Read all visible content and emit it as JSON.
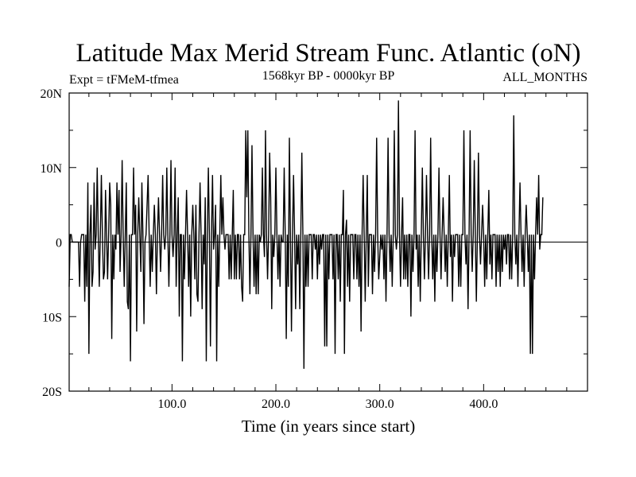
{
  "chart_data": {
    "type": "line",
    "title": "Latitude Max Merid Stream Func. Atlantic (oN)",
    "subtitle_left": "Expt = tFMeM-tfmea",
    "subtitle_center": "1568kyr BP - 0000kyr BP",
    "subtitle_right": "ALL_MONTHS",
    "xlabel": "Time (in years since start)",
    "ylabel": "",
    "xlim": [
      1,
      500
    ],
    "ylim": [
      -20,
      20
    ],
    "x_ticks": [
      {
        "value": 100,
        "label": "100.0"
      },
      {
        "value": 200,
        "label": "200.0"
      },
      {
        "value": 300,
        "label": "300.0"
      },
      {
        "value": 400,
        "label": "400.0"
      }
    ],
    "y_ticks": [
      {
        "value": 20,
        "label": "20N"
      },
      {
        "value": 10,
        "label": "10N"
      },
      {
        "value": 0,
        "label": "0"
      },
      {
        "value": -10,
        "label": "10S"
      },
      {
        "value": -20,
        "label": "20S"
      }
    ],
    "zero_line": true,
    "series": [
      {
        "name": "Latitude of max Atlantic meridional streamfunction",
        "color": "#000000",
        "x_start": 1,
        "x_step": 1,
        "values": [
          -6,
          1,
          1,
          0,
          0,
          0,
          0,
          0,
          0,
          0,
          -6,
          0,
          1,
          1,
          1,
          -8,
          1,
          -6,
          8,
          -15,
          1,
          5,
          -6,
          -4,
          8,
          -1,
          1,
          10,
          1,
          -6,
          1,
          9,
          1,
          -5,
          -4,
          7,
          1,
          -5,
          1,
          8,
          5,
          -13,
          1,
          -5,
          1,
          -1,
          8,
          1,
          7,
          -4,
          1,
          11,
          1,
          -6,
          1,
          8,
          -8,
          -9,
          1,
          -16,
          1,
          1,
          10,
          1,
          5,
          -12,
          1,
          6,
          1,
          -4,
          8,
          1,
          -11,
          0,
          1,
          5,
          9,
          1,
          -6,
          1,
          -4,
          1,
          5,
          1,
          -7,
          1,
          6,
          1,
          -4,
          1,
          9,
          1,
          -1,
          1,
          10,
          1,
          -6,
          1,
          11,
          1,
          -2,
          1,
          10,
          -6,
          1,
          6,
          -10,
          1,
          1,
          -16,
          1,
          -5,
          1,
          7,
          1,
          -6,
          1,
          -10,
          1,
          5,
          1,
          -5,
          5,
          -7,
          -8,
          1,
          8,
          1,
          -9,
          1,
          -3,
          6,
          -16,
          1,
          10,
          1,
          -14,
          1,
          9,
          -1,
          1,
          5,
          -16,
          1,
          -6,
          1,
          9,
          1,
          6,
          1,
          -1,
          1,
          1,
          1,
          -5,
          1,
          -5,
          1,
          7,
          -5,
          1,
          -5,
          1,
          1,
          -5,
          1,
          -6,
          -8,
          1,
          1,
          15,
          6,
          15,
          1,
          -7,
          1,
          13,
          1,
          -6,
          1,
          -7,
          1,
          -7,
          1,
          0,
          1,
          10,
          1,
          -2,
          15,
          1,
          -5,
          1,
          12,
          6,
          -9,
          1,
          -2,
          1,
          10,
          1,
          -5,
          1,
          -6,
          1,
          0,
          0,
          10,
          1,
          -13,
          1,
          -6,
          14,
          1,
          -12,
          1,
          9,
          1,
          -9,
          1,
          -3,
          1,
          -9,
          1,
          12,
          1,
          -17,
          1,
          -6,
          1,
          -6,
          1,
          1,
          1,
          -5,
          1,
          1,
          -1,
          1,
          -5,
          1,
          -3,
          1,
          -1,
          1,
          1,
          -14,
          1,
          -14,
          1,
          -5,
          1,
          1,
          1,
          -5,
          1,
          -15,
          1,
          1,
          -5,
          1,
          -8,
          1,
          1,
          7,
          -15,
          1,
          3,
          -6,
          1,
          -8,
          1,
          1,
          1,
          -5,
          1,
          1,
          -5,
          1,
          -6,
          1,
          -12,
          1,
          9,
          1,
          -8,
          1,
          9,
          -6,
          1,
          1,
          1,
          -7,
          1,
          -4,
          1,
          14,
          1,
          -5,
          -2,
          1,
          -1,
          1,
          -5,
          1,
          -8,
          1,
          14,
          1,
          -4,
          1,
          -6,
          1,
          15,
          1,
          -1,
          1,
          19,
          1,
          -6,
          1,
          6,
          -5,
          1,
          -5,
          1,
          -6,
          1,
          1,
          -10,
          1,
          -4,
          1,
          15,
          -1,
          1,
          -6,
          1,
          -8,
          1,
          10,
          1,
          -5,
          1,
          9,
          1,
          -5,
          1,
          14,
          1,
          -5,
          1,
          -8,
          1,
          -4,
          1,
          10,
          1,
          -5,
          1,
          6,
          1,
          -4,
          1,
          -6,
          1,
          9,
          -2,
          1,
          -8,
          1,
          -2,
          1,
          1,
          1,
          -6,
          1,
          -6,
          1,
          1,
          15,
          1,
          -3,
          1,
          -9,
          1,
          15,
          1,
          -4,
          1,
          11,
          1,
          -8,
          1,
          12,
          1,
          -3,
          1,
          5,
          1,
          -6,
          1,
          -5,
          1,
          7,
          -3,
          1,
          -5,
          1,
          1,
          1,
          -6,
          1,
          -4,
          1,
          -6,
          1,
          -4,
          1,
          -1,
          1,
          -3,
          1,
          1,
          -5,
          1,
          -5,
          1,
          17,
          1,
          -3,
          1,
          -6,
          1,
          8,
          1,
          -4,
          1,
          -6,
          1,
          5,
          1,
          -4,
          1,
          -15,
          1,
          -15,
          1,
          -5,
          1,
          6,
          1,
          9,
          -1,
          1,
          1,
          6
        ]
      }
    ]
  }
}
